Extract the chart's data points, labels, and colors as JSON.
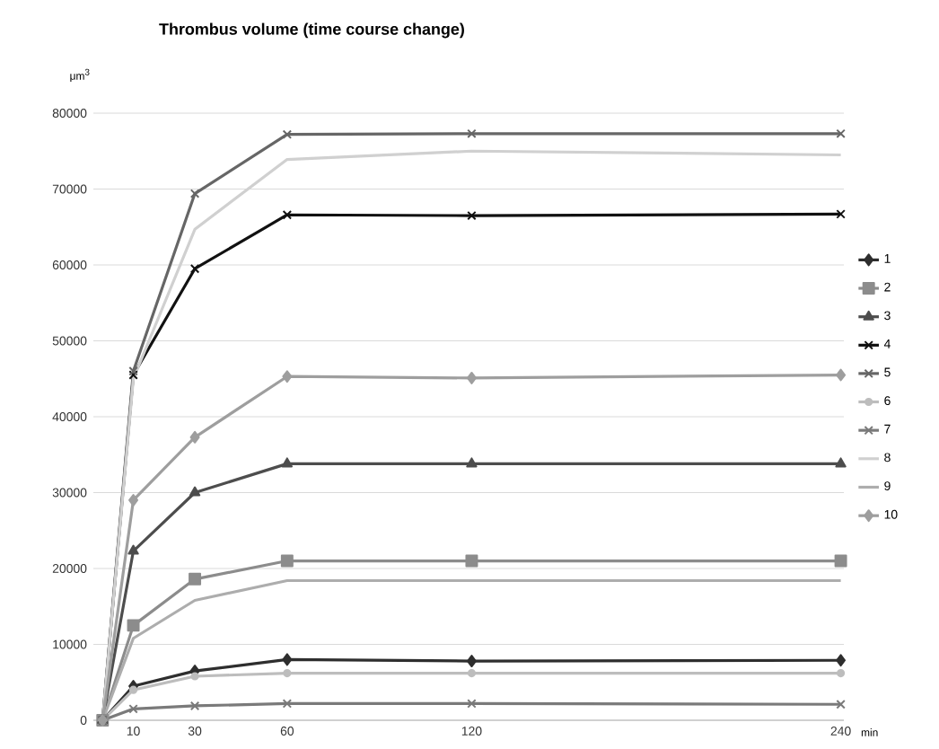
{
  "chart_data": {
    "type": "line",
    "title": "Thrombus volume (time course change)",
    "ylabel": "μm$^{3}$",
    "xlabel": "min",
    "x": [
      0,
      10,
      30,
      60,
      120,
      240
    ],
    "xlim": [
      -3,
      241
    ],
    "xticks": [
      10,
      30,
      60,
      120,
      240
    ],
    "ylim": [
      0,
      80000
    ],
    "yticks": [
      0,
      10000,
      20000,
      30000,
      40000,
      50000,
      60000,
      70000,
      80000
    ],
    "grid": "y",
    "legend": "right",
    "series": [
      {
        "name": "1",
        "color": "#2e2e2e",
        "marker": "diamond",
        "values": [
          0,
          4500,
          6500,
          8000,
          7800,
          7900
        ]
      },
      {
        "name": "2",
        "color": "#8c8c8c",
        "marker": "square",
        "values": [
          0,
          12500,
          18600,
          21000,
          21000,
          21000
        ]
      },
      {
        "name": "3",
        "color": "#4d4d4d",
        "marker": "triangle",
        "values": [
          0,
          22300,
          30000,
          33800,
          33800,
          33800
        ]
      },
      {
        "name": "4",
        "color": "#111111",
        "marker": "cross",
        "values": [
          0,
          45500,
          59500,
          66600,
          66500,
          66700
        ]
      },
      {
        "name": "5",
        "color": "#666666",
        "marker": "cross",
        "values": [
          0,
          46000,
          69400,
          77200,
          77300,
          77300
        ]
      },
      {
        "name": "6",
        "color": "#bdbdbd",
        "marker": "circle",
        "values": [
          0,
          4000,
          5800,
          6200,
          6200,
          6200
        ]
      },
      {
        "name": "7",
        "color": "#7a7a7a",
        "marker": "cross",
        "values": [
          0,
          1500,
          1900,
          2200,
          2200,
          2100
        ]
      },
      {
        "name": "8",
        "color": "#d0d0d0",
        "marker": "none",
        "values": [
          0,
          45000,
          64700,
          73900,
          75000,
          74500
        ]
      },
      {
        "name": "9",
        "color": "#adadad",
        "marker": "none",
        "values": [
          0,
          10800,
          15800,
          18400,
          18400,
          18400
        ]
      },
      {
        "name": "10",
        "color": "#9e9e9e",
        "marker": "diamond",
        "values": [
          0,
          29000,
          37300,
          45300,
          45100,
          45500
        ]
      }
    ]
  }
}
